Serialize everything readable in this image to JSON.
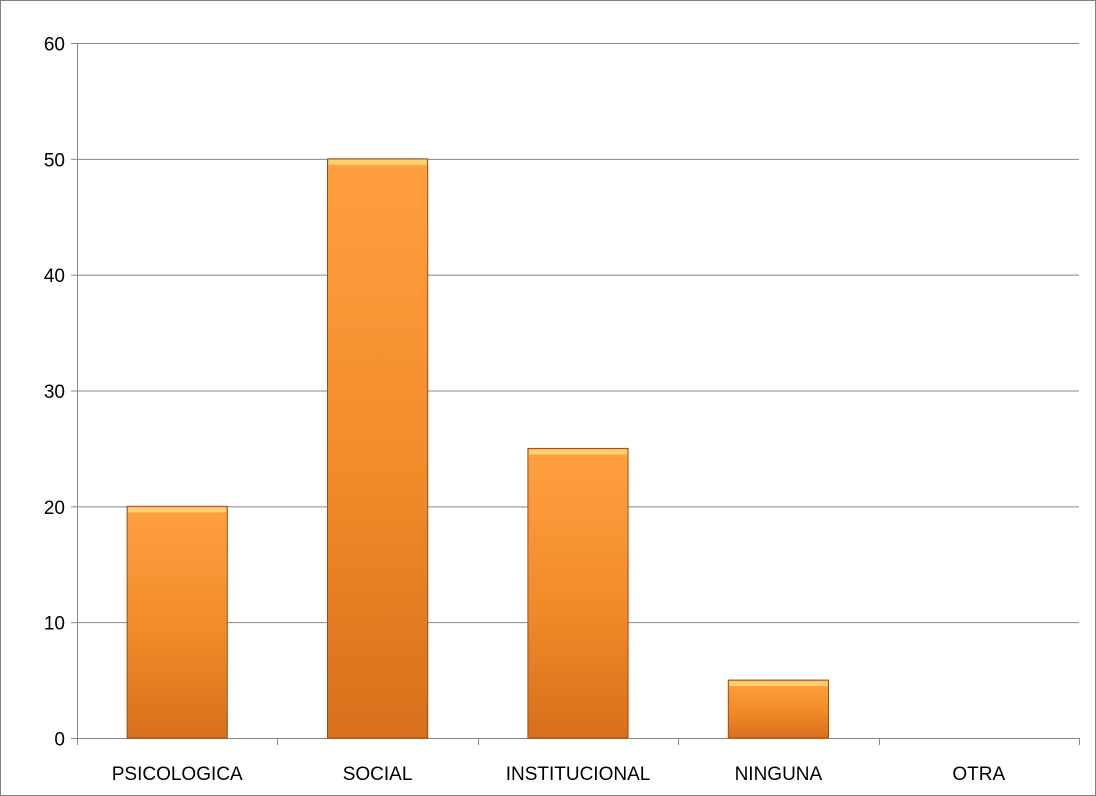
{
  "chart_data": {
    "type": "bar",
    "categories": [
      "PSICOLOGICA",
      "SOCIAL",
      "INSTITUCIONAL",
      "NINGUNA",
      "OTRA"
    ],
    "values": [
      20,
      50,
      25,
      5,
      0
    ],
    "title": "",
    "xlabel": "",
    "ylabel": "",
    "ylim": [
      0,
      60
    ],
    "yticks": [
      0,
      10,
      20,
      30,
      40,
      50,
      60
    ],
    "grid": true,
    "legend": "none",
    "colors": {
      "bar_light": "#ffa040",
      "bar_mid": "#f28a28",
      "bar_dark": "#d86f1c",
      "bar_top": "#ffd070",
      "bar_edge": "#9a4e10",
      "gridline": "#868686",
      "axis": "#868686"
    }
  }
}
